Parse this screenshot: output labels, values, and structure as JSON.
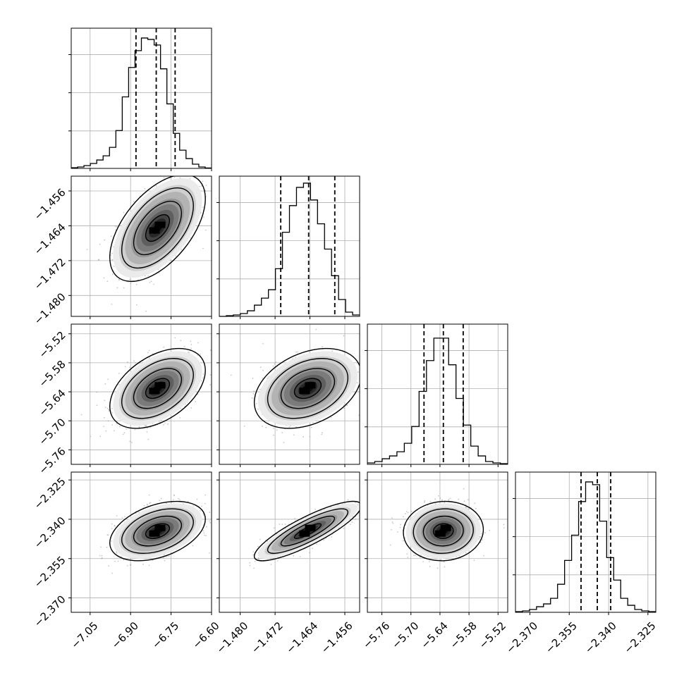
{
  "figure": {
    "description": ""
  },
  "chart_data": {
    "type": "corner",
    "n_params": 4,
    "axes": [
      {
        "ticks": [
          -7.05,
          -6.9,
          -6.75,
          -6.6
        ],
        "tick_labels": [
          "−7.05",
          "−6.90",
          "−6.75",
          "−6.60"
        ],
        "range": [
          -7.12,
          -6.6
        ]
      },
      {
        "ticks": [
          -1.48,
          -1.472,
          -1.464,
          -1.456
        ],
        "tick_labels": [
          "−1.480",
          "−1.472",
          "−1.464",
          "−1.456"
        ],
        "range": [
          -1.4848,
          -1.4526
        ]
      },
      {
        "ticks": [
          -5.76,
          -5.7,
          -5.64,
          -5.58,
          -5.52
        ],
        "tick_labels": [
          "−5.76",
          "−5.70",
          "−5.64",
          "−5.58",
          "−5.52"
        ],
        "range": [
          -5.79,
          -5.5
        ]
      },
      {
        "ticks": [
          -2.37,
          -2.355,
          -2.34,
          -2.325
        ],
        "tick_labels": [
          "−2.370",
          "−2.355",
          "−2.340",
          "−2.325"
        ],
        "range": [
          -2.3755,
          -2.322
        ]
      }
    ],
    "y_axes": [
      null,
      {
        "ticks": [
          -1.456,
          -1.464,
          -1.472,
          -1.48
        ],
        "tick_labels": [
          "−1.456",
          "−1.464",
          "−1.472",
          "−1.480"
        ],
        "range": [
          -1.4848,
          -1.4526
        ]
      },
      {
        "ticks": [
          -5.52,
          -5.58,
          -5.64,
          -5.7,
          -5.76
        ],
        "tick_labels": [
          "−5.52",
          "−5.58",
          "−5.64",
          "−5.70",
          "−5.76"
        ],
        "range": [
          -5.79,
          -5.5
        ]
      },
      {
        "ticks": [
          -2.325,
          -2.34,
          -2.355,
          -2.37
        ],
        "tick_labels": [
          "−2.325",
          "−2.340",
          "−2.355",
          "−2.370"
        ],
        "range": [
          -2.3755,
          -2.322
        ]
      }
    ],
    "histograms": [
      {
        "param": 0,
        "quantiles": [
          -6.88,
          -6.805,
          -6.735
        ],
        "values": [
          0.005,
          0.01,
          0.02,
          0.035,
          0.06,
          0.09,
          0.15,
          0.27,
          0.51,
          0.72,
          0.84,
          0.93,
          0.92,
          0.88,
          0.71,
          0.46,
          0.25,
          0.13,
          0.07,
          0.03,
          0.01,
          0.003
        ]
      },
      {
        "param": 1,
        "quantiles": [
          -1.4707,
          -1.4643,
          -1.4583
        ],
        "values": [
          0.0,
          0.005,
          0.01,
          0.02,
          0.04,
          0.08,
          0.13,
          0.19,
          0.34,
          0.6,
          0.79,
          0.92,
          0.95,
          0.83,
          0.66,
          0.48,
          0.29,
          0.12,
          0.03,
          0.01
        ]
      },
      {
        "param": 2,
        "quantiles": [
          -5.673,
          -5.633,
          -5.592
        ],
        "values": [
          0.01,
          0.02,
          0.04,
          0.06,
          0.09,
          0.15,
          0.27,
          0.52,
          0.74,
          0.9,
          0.9,
          0.71,
          0.47,
          0.28,
          0.13,
          0.06,
          0.02,
          0.01,
          0.005
        ]
      },
      {
        "param": 3,
        "quantiles": [
          -2.3505,
          -2.3443,
          -2.3392
        ],
        "values": [
          0.005,
          0.01,
          0.02,
          0.04,
          0.06,
          0.1,
          0.2,
          0.37,
          0.55,
          0.79,
          0.93,
          0.91,
          0.65,
          0.39,
          0.23,
          0.1,
          0.05,
          0.02,
          0.01,
          0.005
        ]
      }
    ],
    "pairs": [
      {
        "x": 0,
        "y": 1,
        "center": [
          -6.8,
          -1.4645
        ],
        "sigma": [
          0.075,
          0.0052
        ],
        "rho": 0.55
      },
      {
        "x": 0,
        "y": 2,
        "center": [
          -6.8,
          -5.633
        ],
        "sigma": [
          0.075,
          0.035
        ],
        "rho": 0.45
      },
      {
        "x": 1,
        "y": 2,
        "center": [
          -1.4645,
          -5.633
        ],
        "sigma": [
          0.0052,
          0.035
        ],
        "rho": 0.35
      },
      {
        "x": 0,
        "y": 3,
        "center": [
          -6.8,
          -2.3445
        ],
        "sigma": [
          0.075,
          0.0048
        ],
        "rho": 0.4
      },
      {
        "x": 1,
        "y": 3,
        "center": [
          -1.4645,
          -2.3445
        ],
        "sigma": [
          0.0052,
          0.0048
        ],
        "rho": 0.85
      },
      {
        "x": 2,
        "y": 3,
        "center": [
          -5.633,
          -2.3445
        ],
        "sigma": [
          0.035,
          0.0048
        ],
        "rho": 0.05
      }
    ],
    "contour_levels_sigma": [
      0.5,
      1.0,
      1.5,
      2.0
    ],
    "grid": true,
    "colors": {
      "line": "#000000",
      "grid": "#b0b0b0",
      "scatter": "#9a9a9a",
      "fill_dark": "#000000",
      "fill_light": "#ffffff"
    }
  }
}
